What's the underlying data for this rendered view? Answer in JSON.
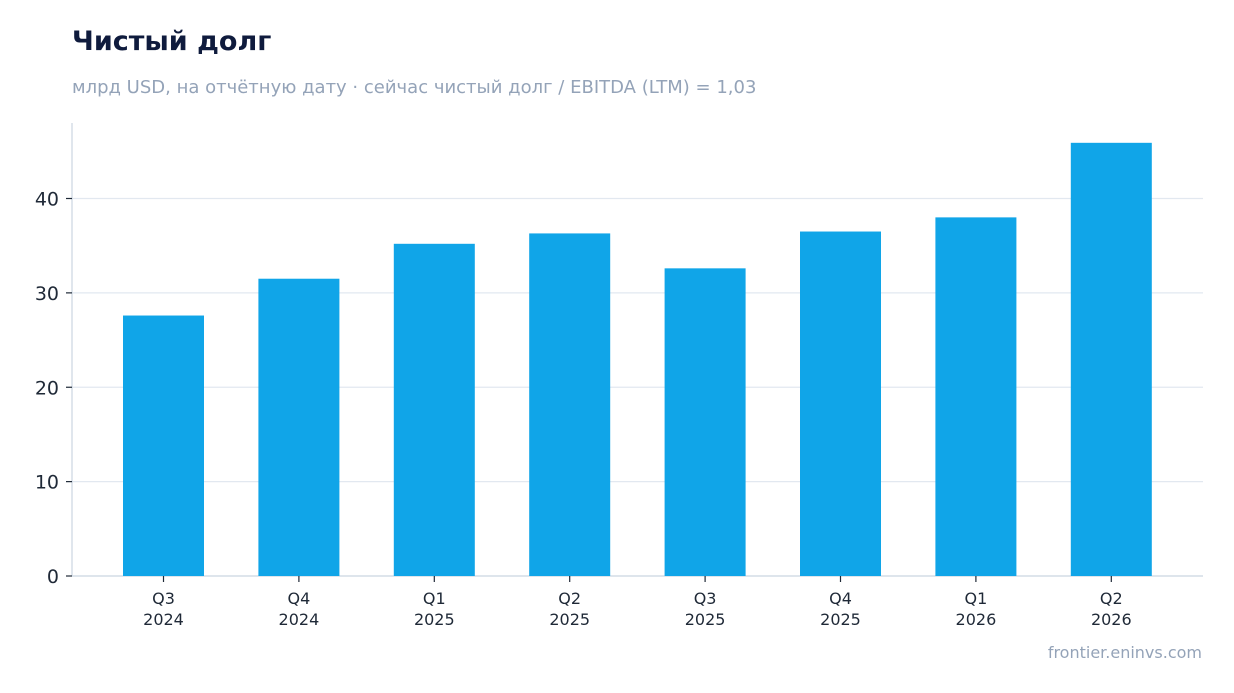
{
  "chart_data": {
    "type": "bar",
    "title": "Чистый долг",
    "subtitle": "млрд USD, на отчётную дату · сейчас чистый долг / EBITDA (LTM) = 1,03",
    "source": "frontier.eninvs.com",
    "categories": [
      [
        "Q3",
        "2024"
      ],
      [
        "Q4",
        "2024"
      ],
      [
        "Q1",
        "2025"
      ],
      [
        "Q2",
        "2025"
      ],
      [
        "Q3",
        "2025"
      ],
      [
        "Q4",
        "2025"
      ],
      [
        "Q1",
        "2026"
      ],
      [
        "Q2",
        "2026"
      ]
    ],
    "values": [
      27.6,
      31.5,
      35.2,
      36.3,
      32.6,
      36.5,
      38.0,
      45.9
    ],
    "ylim": [
      0,
      48
    ],
    "yticks": [
      0,
      10,
      20,
      30,
      40
    ],
    "grid": true,
    "xlabel": "",
    "ylabel": "",
    "colors": {
      "bar": "#10a5e8",
      "grid": "#e2e8f0",
      "axis": "#cbd5e1"
    }
  }
}
